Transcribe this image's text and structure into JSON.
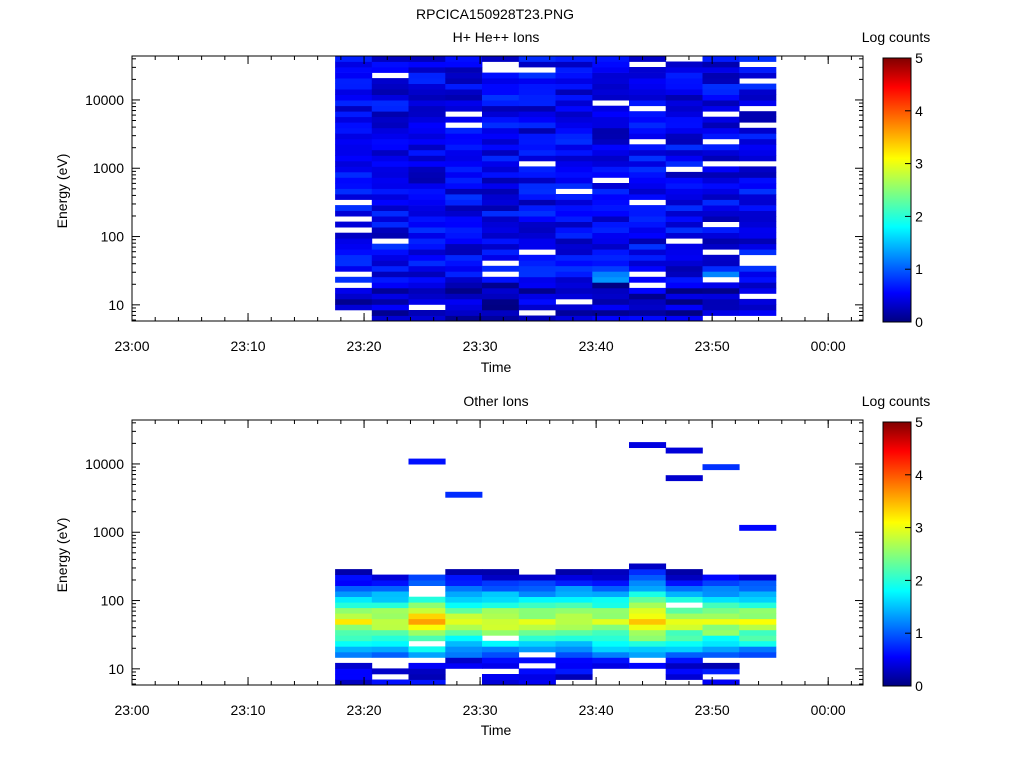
{
  "figure": {
    "title": "RPCICA150928T23.PNG"
  },
  "colorscale": {
    "label": "Log counts",
    "range": [
      0,
      5
    ],
    "ticks": [
      0,
      1,
      2,
      3,
      4,
      5
    ],
    "colors": [
      "#000080",
      "#0000ff",
      "#00ffff",
      "#ffff00",
      "#ff0000",
      "#800000"
    ]
  },
  "chart_data": [
    {
      "type": "heatmap",
      "title": "H+ He++ Ions",
      "xlabel": "Time",
      "ylabel": "Energy (eV)",
      "x_ticks": [
        "23:00",
        "23:10",
        "23:20",
        "23:30",
        "23:40",
        "23:50",
        "00:00"
      ],
      "xlim": [
        "23:00",
        "00:03"
      ],
      "y_scale": "log",
      "ylim": [
        5.8,
        44000
      ],
      "y_ticks": [
        10,
        100,
        1000,
        10000
      ],
      "y_ticklabels": [
        "10",
        "100",
        "1000",
        "10000"
      ],
      "data_time_range": [
        "23:17:30",
        "23:55:30"
      ],
      "time_bins": 12,
      "energy_bins": 48,
      "typical_log_counts": [
        0.2,
        0.8
      ],
      "colorbar_label": "Log counts"
    },
    {
      "type": "heatmap",
      "title": "Other Ions",
      "xlabel": "Time",
      "ylabel": "Energy (eV)",
      "x_ticks": [
        "23:00",
        "23:10",
        "23:20",
        "23:30",
        "23:40",
        "23:50",
        "00:00"
      ],
      "xlim": [
        "23:00",
        "00:03"
      ],
      "y_scale": "log",
      "ylim": [
        5.8,
        44000
      ],
      "y_ticks": [
        10,
        100,
        1000,
        10000
      ],
      "y_ticklabels": [
        "10",
        "100",
        "1000",
        "10000"
      ],
      "data_time_range": [
        "23:17:30",
        "23:55:30"
      ],
      "time_bins": 12,
      "energy_bins": 48,
      "peak_energy_band_eV": [
        20,
        300
      ],
      "peak_log_counts": 3.0,
      "colorbar_label": "Log counts"
    }
  ]
}
